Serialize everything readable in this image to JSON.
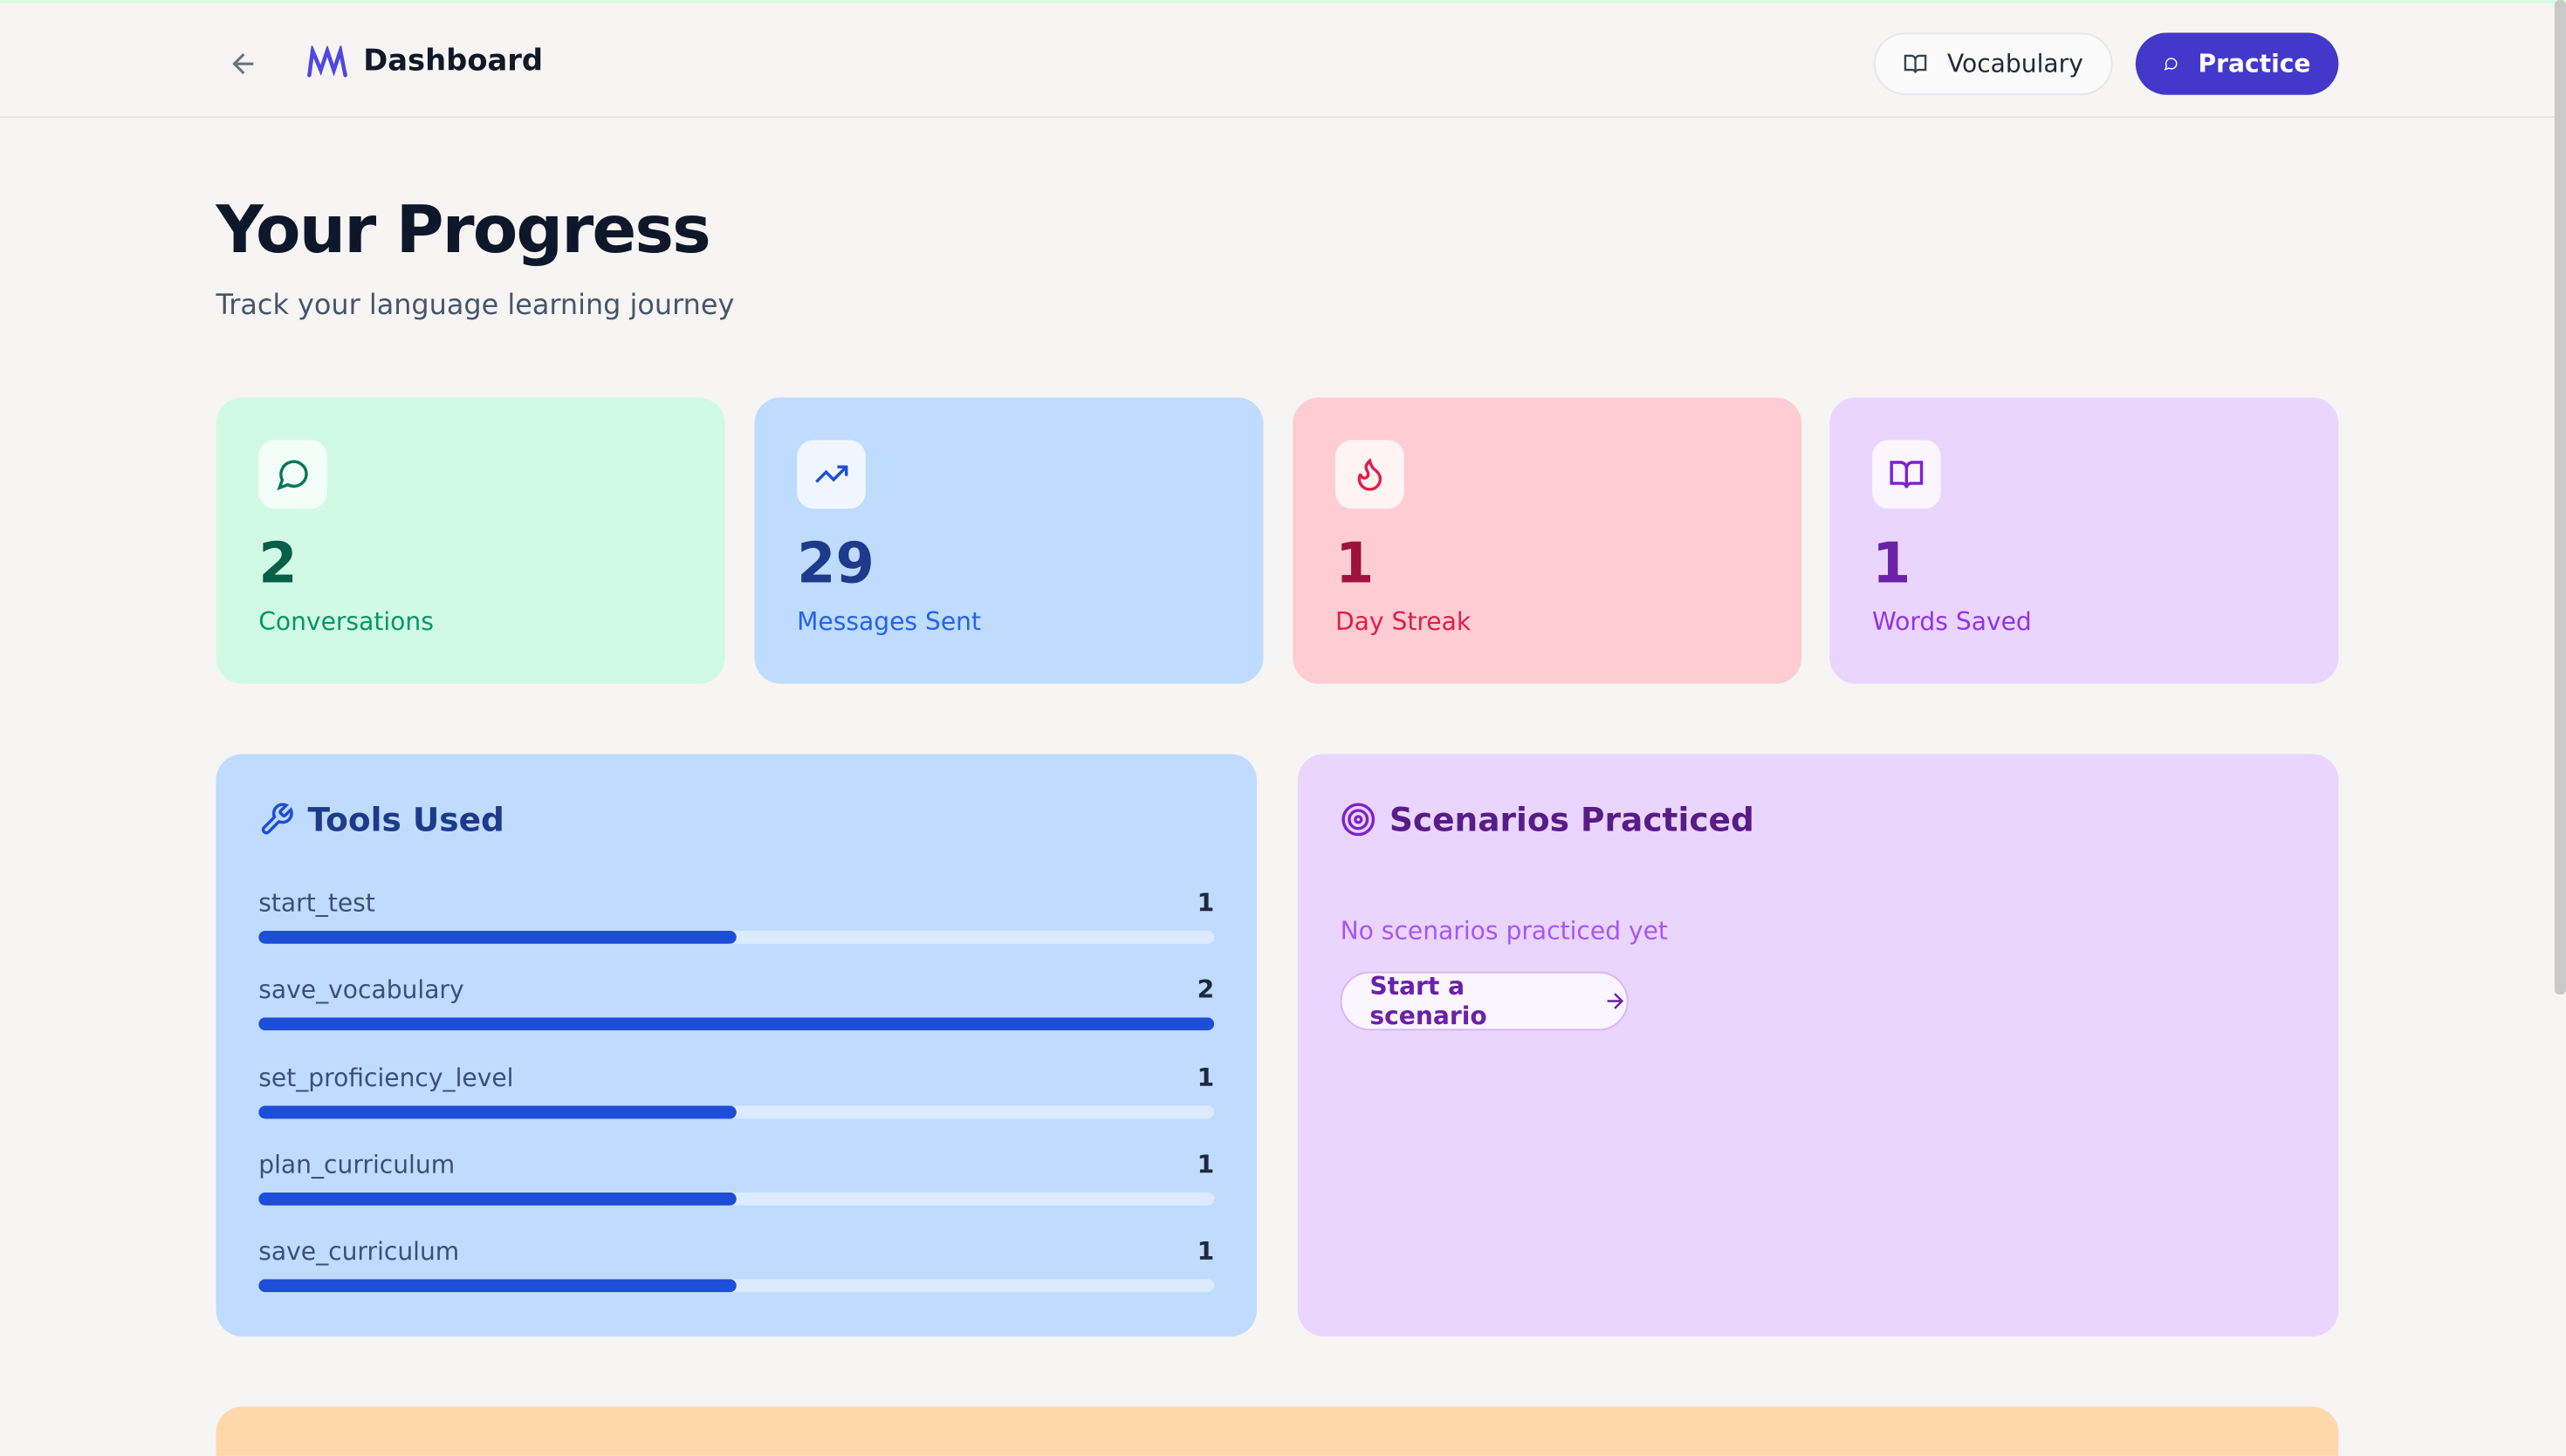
{
  "header": {
    "title": "Dashboard",
    "buttons": [
      "Vocabulary",
      "Practice"
    ]
  },
  "page": {
    "title": "Your Progress",
    "subtitle": "Track your language learning journey"
  },
  "stats": [
    {
      "value": 2,
      "label": "Conversations"
    },
    {
      "value": 29,
      "label": "Messages Sent"
    },
    {
      "value": 1,
      "label": "Day Streak"
    },
    {
      "value": 1,
      "label": "Words Saved"
    }
  ],
  "tools": {
    "title": "Tools Used",
    "items": [
      {
        "name": "start_test",
        "count": 1
      },
      {
        "name": "save_vocabulary",
        "count": 2
      },
      {
        "name": "set_proficiency_level",
        "count": 1
      },
      {
        "name": "plan_curriculum",
        "count": 1
      },
      {
        "name": "save_curriculum",
        "count": 1
      }
    ]
  },
  "scenarios": {
    "title": "Scenarios Practiced",
    "empty": "No scenarios practiced yet",
    "button": "Start a scenario"
  }
}
